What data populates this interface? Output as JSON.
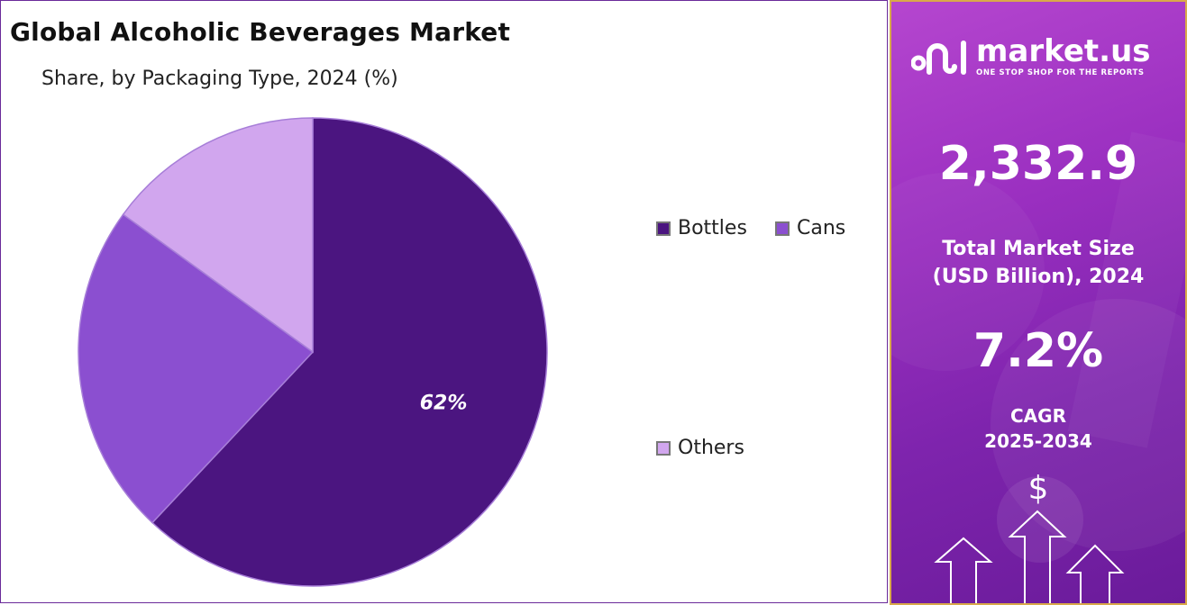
{
  "chart_data": {
    "type": "pie",
    "title": "Global Alcoholic Beverages Market",
    "subtitle": "Share, by Packaging Type, 2024 (%)",
    "slices": [
      {
        "label": "Bottles",
        "value": 62,
        "color": "#4b1580",
        "data_label": "62%"
      },
      {
        "label": "Cans",
        "value": 23,
        "color": "#8b4fd0",
        "data_label": ""
      },
      {
        "label": "Others",
        "value": 15,
        "color": "#d1a6ee",
        "data_label": ""
      }
    ],
    "start_angle_deg": 0,
    "direction": "clockwise",
    "legend_placement": "right"
  },
  "side_panel": {
    "brand_name": "market.us",
    "brand_tagline": "ONE STOP SHOP FOR THE REPORTS",
    "market_size_value": "2,332.9",
    "market_size_label_line1": "Total Market Size",
    "market_size_label_line2": "(USD Billion), 2024",
    "cagr_value": "7.2%",
    "cagr_label": "CAGR",
    "cagr_period": "2025-2034",
    "currency_symbol": "$"
  },
  "colors": {
    "side_panel_gradient": [
      "#b546cf",
      "#6a1b9a"
    ],
    "side_panel_border": "#d9a94a",
    "chart_border": "#6a2a9a"
  }
}
